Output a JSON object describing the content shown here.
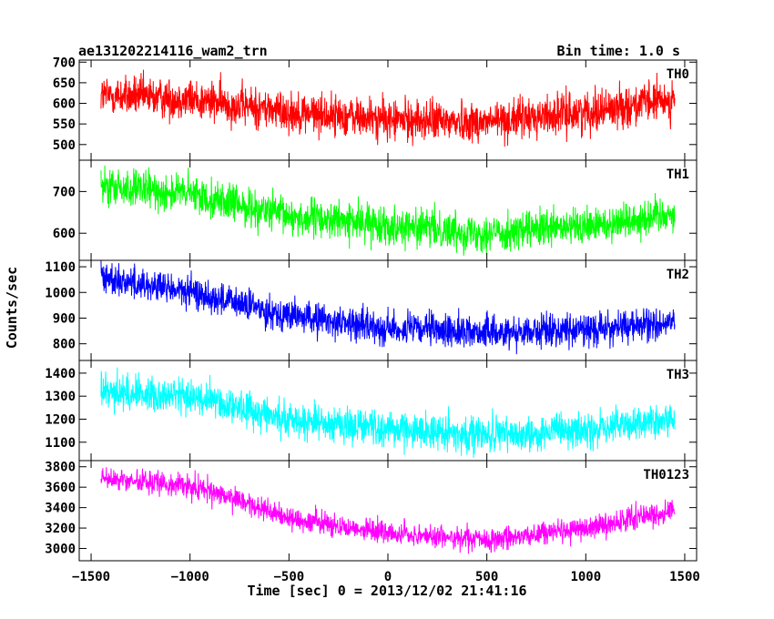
{
  "header": {
    "title": "ae131202214116_wam2_trn",
    "bin_time": "Bin time: 1.0 s"
  },
  "chart_data": {
    "type": "line",
    "xlabel": "Time [sec] 0 = 2013/12/02 21:41:16",
    "ylabel": "Counts/sec",
    "xlim": [
      -1560,
      1560
    ],
    "x_ticks": [
      -1500,
      -1000,
      -500,
      0,
      500,
      1000,
      1500
    ],
    "x_range_data": [
      -1450,
      1450
    ],
    "grid": false,
    "panels": [
      {
        "name": "TH0",
        "color": "#ff0000",
        "ylim": [
          462,
          705
        ],
        "y_ticks": [
          500,
          550,
          600,
          650,
          700
        ],
        "trend": [
          [
            -1450,
            620
          ],
          [
            -1000,
            610
          ],
          [
            -500,
            580
          ],
          [
            0,
            560
          ],
          [
            500,
            555
          ],
          [
            1000,
            580
          ],
          [
            1450,
            610
          ]
        ],
        "noise": 35
      },
      {
        "name": "TH1",
        "color": "#00ff00",
        "ylim": [
          535,
          775
        ],
        "y_ticks": [
          600,
          700
        ],
        "trend": [
          [
            -1450,
            710
          ],
          [
            -1000,
            695
          ],
          [
            -500,
            640
          ],
          [
            0,
            620
          ],
          [
            500,
            600
          ],
          [
            1000,
            615
          ],
          [
            1450,
            650
          ]
        ],
        "noise": 32
      },
      {
        "name": "TH2",
        "color": "#0000ff",
        "ylim": [
          735,
          1125
        ],
        "y_ticks": [
          800,
          900,
          1000,
          1100
        ],
        "trend": [
          [
            -1450,
            1060
          ],
          [
            -1000,
            1000
          ],
          [
            -500,
            910
          ],
          [
            0,
            860
          ],
          [
            500,
            845
          ],
          [
            1000,
            855
          ],
          [
            1450,
            880
          ]
        ],
        "noise": 45
      },
      {
        "name": "TH3",
        "color": "#00ffff",
        "ylim": [
          1020,
          1455
        ],
        "y_ticks": [
          1100,
          1200,
          1300,
          1400
        ],
        "trend": [
          [
            -1450,
            1320
          ],
          [
            -1000,
            1300
          ],
          [
            -500,
            1200
          ],
          [
            0,
            1160
          ],
          [
            500,
            1130
          ],
          [
            1000,
            1150
          ],
          [
            1450,
            1200
          ]
        ],
        "noise": 55
      },
      {
        "name": "TH0123",
        "color": "#ff00ff",
        "ylim": [
          2880,
          3860
        ],
        "y_ticks": [
          3000,
          3200,
          3400,
          3600,
          3800
        ],
        "trend": [
          [
            -1450,
            3680
          ],
          [
            -1000,
            3620
          ],
          [
            -500,
            3300
          ],
          [
            0,
            3150
          ],
          [
            500,
            3080
          ],
          [
            1000,
            3200
          ],
          [
            1450,
            3380
          ]
        ],
        "noise": 80
      }
    ]
  }
}
